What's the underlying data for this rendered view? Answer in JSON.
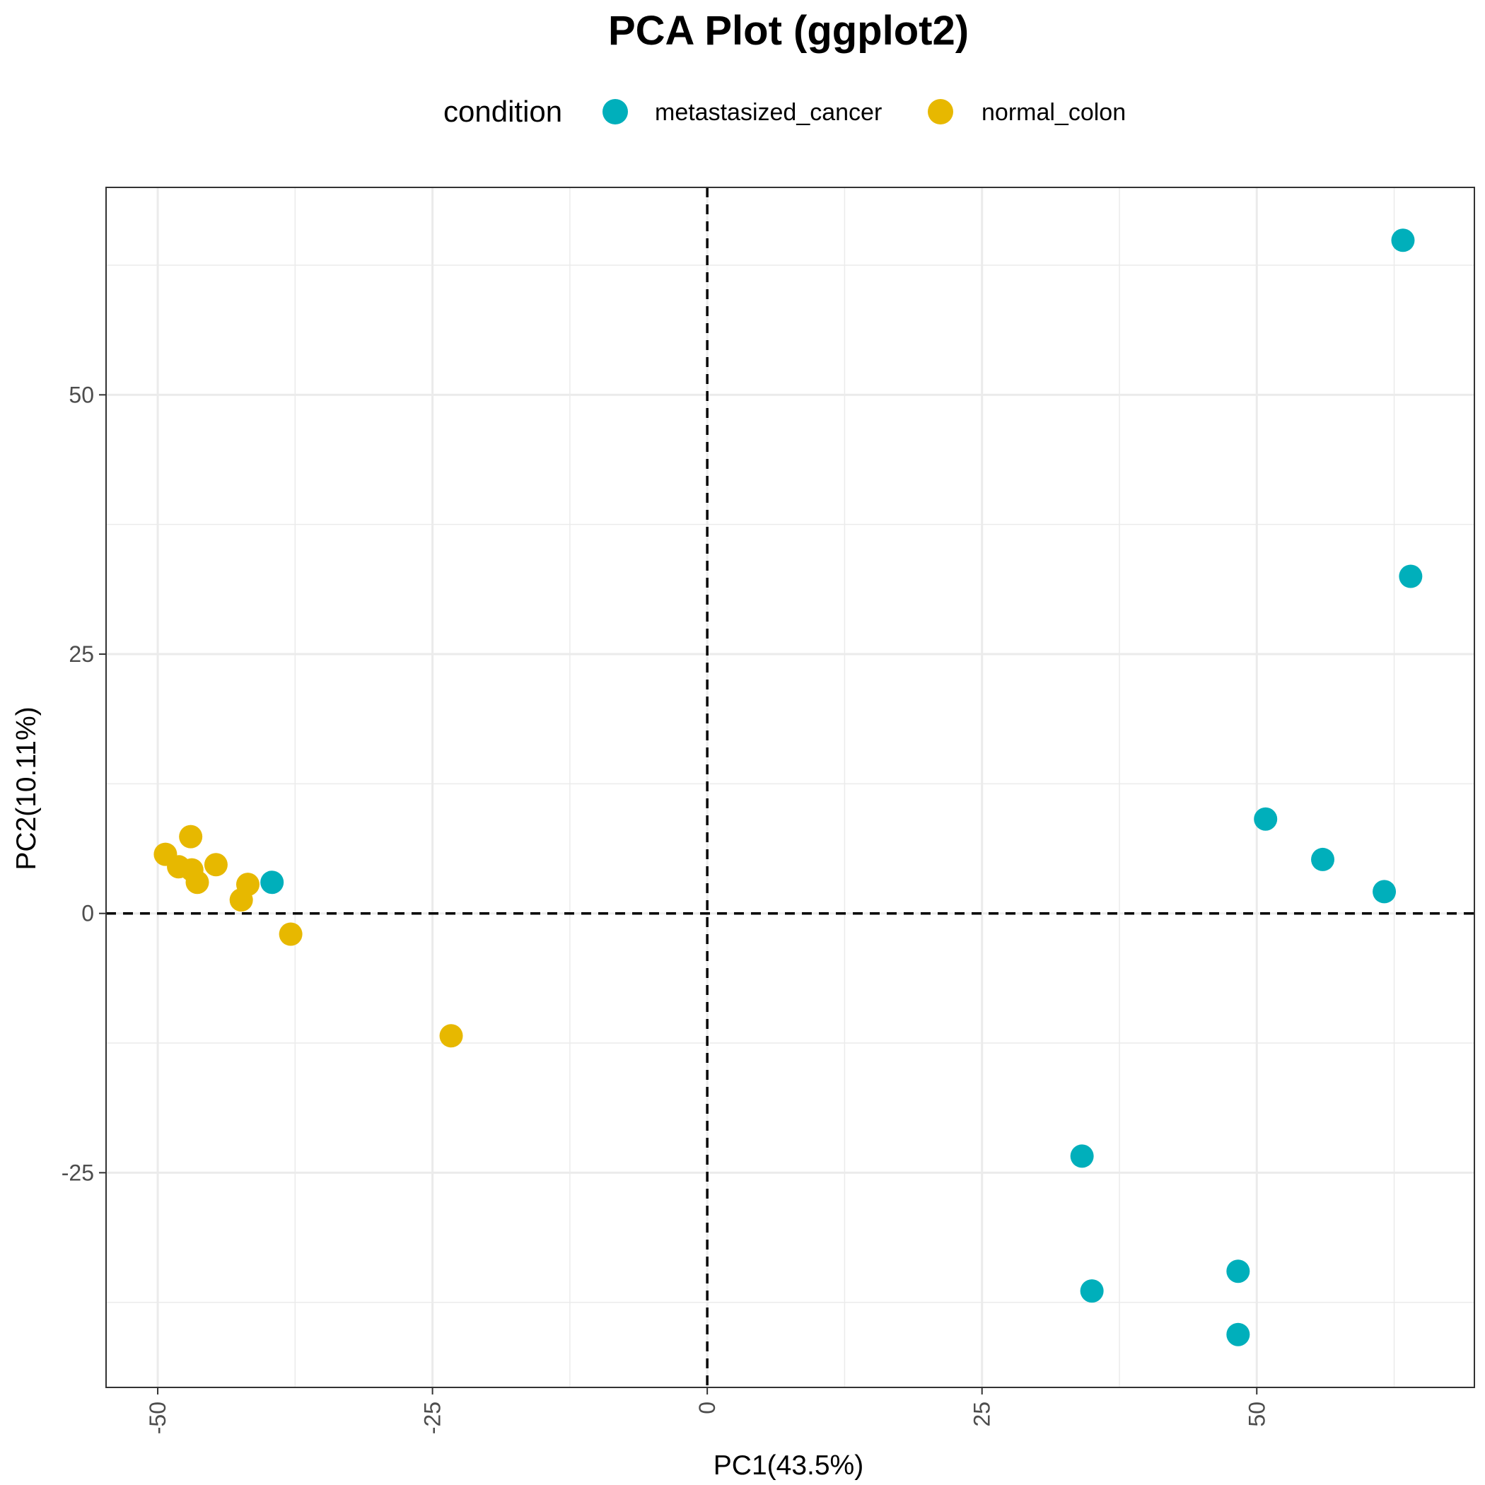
{
  "chart_data": {
    "type": "scatter",
    "title": "PCA Plot (ggplot2)",
    "xlabel": "PC1(43.5%)",
    "ylabel": "PC2(10.11%)",
    "xlim": [
      -54.7,
      69.8
    ],
    "ylim": [
      -45.7,
      70.0
    ],
    "x_ticks": [
      -50,
      -25,
      0,
      25,
      50
    ],
    "y_ticks": [
      -25,
      0,
      25,
      50
    ],
    "x_tick_labels": [
      "-50",
      "-25",
      "0",
      "25",
      "50"
    ],
    "y_tick_labels": [
      "-25",
      "0",
      "25",
      "50"
    ],
    "grid": true,
    "reference_lines": {
      "x": 0,
      "y": 0,
      "style": "dashed"
    },
    "legend": {
      "title": "condition",
      "position": "top"
    },
    "series": [
      {
        "name": "metastasized_cancer",
        "color": "#00AFBB",
        "points": [
          [
            63.3,
            64.9
          ],
          [
            64.0,
            32.5
          ],
          [
            50.8,
            9.1
          ],
          [
            56.0,
            5.2
          ],
          [
            61.6,
            2.1
          ],
          [
            -39.6,
            3.0
          ],
          [
            34.1,
            -23.4
          ],
          [
            35.0,
            -36.4
          ],
          [
            48.3,
            -34.5
          ],
          [
            48.3,
            -40.6
          ]
        ]
      },
      {
        "name": "normal_colon",
        "color": "#E7B800",
        "points": [
          [
            -49.3,
            5.7
          ],
          [
            -48.1,
            4.5
          ],
          [
            -46.9,
            4.2
          ],
          [
            -46.4,
            3.0
          ],
          [
            -47.0,
            7.4
          ],
          [
            -44.7,
            4.7
          ],
          [
            -41.8,
            2.8
          ],
          [
            -42.4,
            1.3
          ],
          [
            -37.9,
            -2.0
          ],
          [
            -23.3,
            -11.8
          ]
        ]
      }
    ]
  }
}
